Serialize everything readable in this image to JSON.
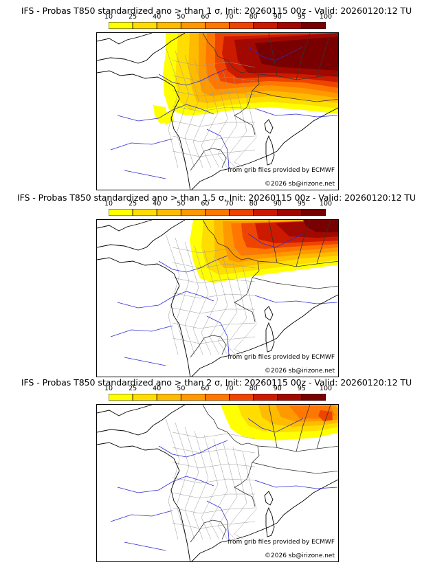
{
  "colorbar": {
    "ticks": [
      "10",
      "25",
      "40",
      "50",
      "60",
      "70",
      "80",
      "90",
      "95",
      "100"
    ],
    "colors": [
      "#ffff00",
      "#ffdd00",
      "#ffbb00",
      "#ff9900",
      "#ff7700",
      "#ee4400",
      "#cc1a00",
      "#a00800",
      "#780000"
    ]
  },
  "credits": {
    "source": "from grib files provided by ECMWF",
    "copyright": "©2026 sb@irizone.net"
  },
  "panels": [
    {
      "title": "IFS - Probas T850  standardized ano > than 1 σ, Init: 20260115 00z - Valid: 20260120:12 TU",
      "threshold_sigma": 1
    },
    {
      "title": "IFS - Probas T850  standardized ano > than 1.5 σ, Init: 20260115 00z - Valid: 20260120:12 TU",
      "threshold_sigma": 1.5
    },
    {
      "title": "IFS - Probas T850  standardized ano > than 2 σ, Init: 20260115 00z - Valid: 20260120:12 TU",
      "threshold_sigma": 2
    }
  ]
}
